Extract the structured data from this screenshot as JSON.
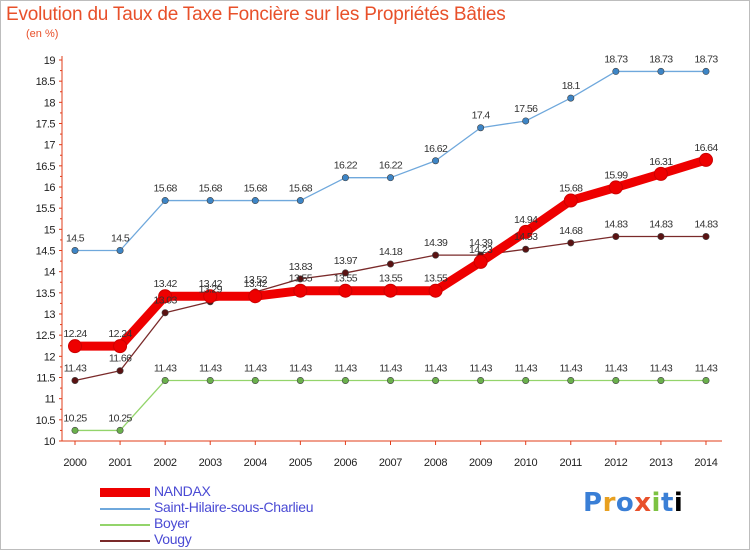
{
  "chart_data": {
    "type": "line",
    "title": "Evolution du Taux de Taxe Foncière sur les Propriétés Bâties",
    "unit_label": "(en %)",
    "x": [
      "2000",
      "2001",
      "2002",
      "2003",
      "2004",
      "2005",
      "2006",
      "2007",
      "2008",
      "2009",
      "2010",
      "2011",
      "2012",
      "2013",
      "2014"
    ],
    "ylim": [
      10,
      19
    ],
    "yticks": [
      "10",
      "10.5",
      "11",
      "11.5",
      "12",
      "12.5",
      "13",
      "13.5",
      "14",
      "14.5",
      "15",
      "15.5",
      "16",
      "16.5",
      "17",
      "17.5",
      "18",
      "18.5",
      "19"
    ],
    "grid": false,
    "legend_position": "bottom-left",
    "series": [
      {
        "name": "NANDAX",
        "color": "#ee0000",
        "point_color": "#ee0000",
        "weight": "heavy",
        "values": [
          12.24,
          12.24,
          13.42,
          13.42,
          13.42,
          13.55,
          13.55,
          13.55,
          13.55,
          14.23,
          14.94,
          15.68,
          15.99,
          16.31,
          16.64
        ],
        "labels": [
          "12.24",
          "12.24",
          "13.42",
          "13.42",
          "13.42",
          "13.55",
          "13.55",
          "13.55",
          "13.55",
          "14.23",
          "14.94",
          "15.68",
          "15.99",
          "16.31",
          "16.64"
        ]
      },
      {
        "name": "Saint-Hilaire-sous-Charlieu",
        "color": "#6fa8dc",
        "point_color": "#3d85c6",
        "weight": "thin",
        "values": [
          14.5,
          14.5,
          15.68,
          15.68,
          15.68,
          15.68,
          16.22,
          16.22,
          16.62,
          17.4,
          17.56,
          18.1,
          18.73,
          18.73,
          18.73
        ],
        "labels": [
          "14.5",
          "14.5",
          "15.68",
          "15.68",
          "15.68",
          "15.68",
          "16.22",
          "16.22",
          "16.62",
          "17.4",
          "17.56",
          "18.1",
          "18.73",
          "18.73",
          "18.73"
        ]
      },
      {
        "name": "Boyer",
        "color": "#93d46b",
        "point_color": "#6ab04c",
        "weight": "thin",
        "values": [
          10.25,
          10.25,
          11.43,
          11.43,
          11.43,
          11.43,
          11.43,
          11.43,
          11.43,
          11.43,
          11.43,
          11.43,
          11.43,
          11.43,
          11.43
        ],
        "labels": [
          "10.25",
          "10.25",
          "11.43",
          "11.43",
          "11.43",
          "11.43",
          "11.43",
          "11.43",
          "11.43",
          "11.43",
          "11.43",
          "11.43",
          "11.43",
          "11.43",
          "11.43"
        ]
      },
      {
        "name": "Vougy",
        "color": "#7a2a2a",
        "point_color": "#5a1212",
        "weight": "thin",
        "values": [
          11.43,
          11.66,
          13.03,
          13.29,
          13.52,
          13.83,
          13.97,
          14.18,
          14.39,
          14.39,
          14.53,
          14.68,
          14.83,
          14.83,
          14.83
        ],
        "labels": [
          "11.43",
          "11.66",
          "13.03",
          "13.29",
          "13.52",
          "13.83",
          "13.97",
          "14.18",
          "14.39",
          "14.39",
          "14.53",
          "14.68",
          "14.83",
          "14.83",
          "14.83"
        ]
      }
    ]
  },
  "logo": {
    "text": "Proxiti"
  }
}
